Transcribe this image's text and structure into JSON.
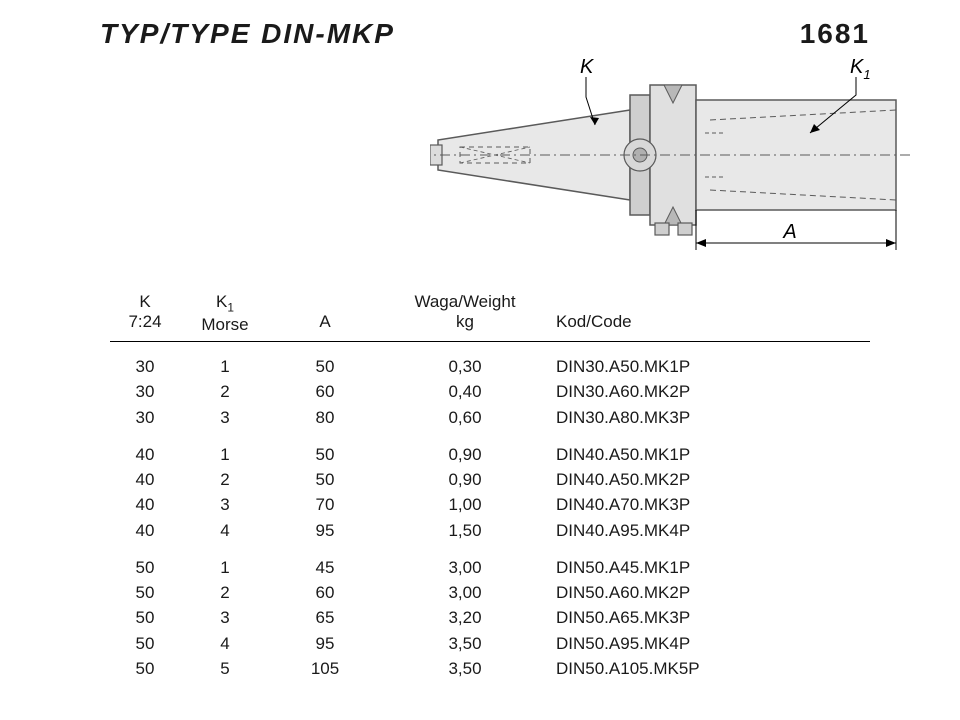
{
  "header": {
    "title": "TYP/TYPE  DIN-MKP",
    "code": "1681"
  },
  "diagram": {
    "label_K": "K",
    "label_K1": "K",
    "label_K1_sub": "1",
    "label_A": "A",
    "stroke": "#5a5a5a",
    "fill_light": "#e8e8e8",
    "fill_mid": "#cfcfcf",
    "fill_dark": "#b8b8b8",
    "axis_dash": "6 3 1 3"
  },
  "table": {
    "headers": {
      "k_line1": "K",
      "k_line2": "7:24",
      "k1_line1": "K",
      "k1_sub": "1",
      "k1_line2": "Morse",
      "a": "A",
      "w_line1": "Waga/Weight",
      "w_line2": "kg",
      "code": "Kod/Code"
    },
    "groups": [
      [
        {
          "k": "30",
          "k1": "1",
          "a": "50",
          "w": "0,30",
          "code": "DIN30.A50.MK1P"
        },
        {
          "k": "30",
          "k1": "2",
          "a": "60",
          "w": "0,40",
          "code": "DIN30.A60.MK2P"
        },
        {
          "k": "30",
          "k1": "3",
          "a": "80",
          "w": "0,60",
          "code": "DIN30.A80.MK3P"
        }
      ],
      [
        {
          "k": "40",
          "k1": "1",
          "a": "50",
          "w": "0,90",
          "code": "DIN40.A50.MK1P"
        },
        {
          "k": "40",
          "k1": "2",
          "a": "50",
          "w": "0,90",
          "code": "DIN40.A50.MK2P"
        },
        {
          "k": "40",
          "k1": "3",
          "a": "70",
          "w": "1,00",
          "code": "DIN40.A70.MK3P"
        },
        {
          "k": "40",
          "k1": "4",
          "a": "95",
          "w": "1,50",
          "code": "DIN40.A95.MK4P"
        }
      ],
      [
        {
          "k": "50",
          "k1": "1",
          "a": "45",
          "w": "3,00",
          "code": "DIN50.A45.MK1P"
        },
        {
          "k": "50",
          "k1": "2",
          "a": "60",
          "w": "3,00",
          "code": "DIN50.A60.MK2P"
        },
        {
          "k": "50",
          "k1": "3",
          "a": "65",
          "w": "3,20",
          "code": "DIN50.A65.MK3P"
        },
        {
          "k": "50",
          "k1": "4",
          "a": "95",
          "w": "3,50",
          "code": "DIN50.A95.MK4P"
        },
        {
          "k": "50",
          "k1": "5",
          "a": "105",
          "w": "3,50",
          "code": "DIN50.A105.MK5P"
        }
      ]
    ]
  }
}
